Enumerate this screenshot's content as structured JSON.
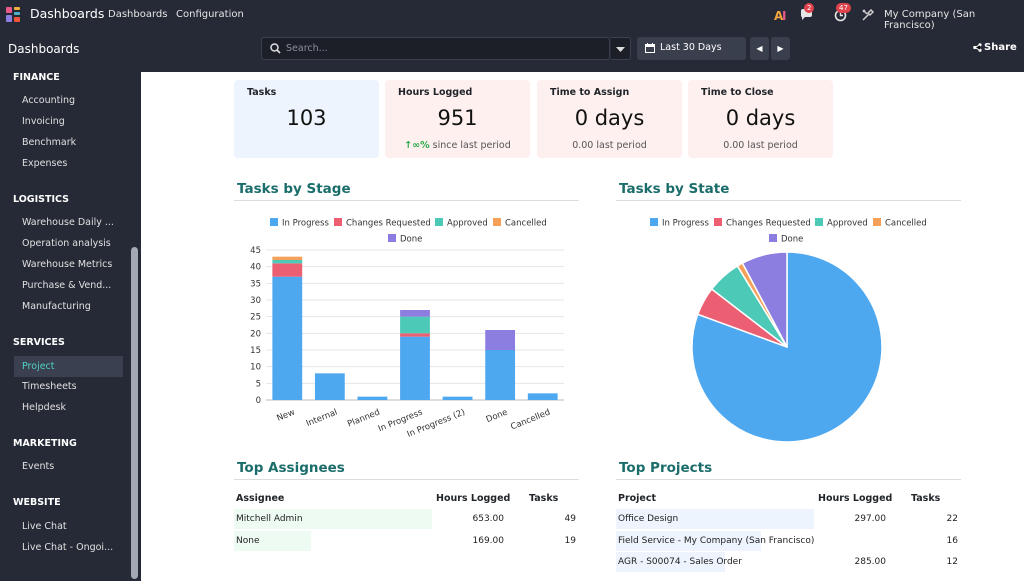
{
  "topbar": {
    "app_title": "Dashboards",
    "menu": [
      "Dashboards",
      "Configuration"
    ],
    "messages_count": "2",
    "activities_count": "47",
    "company": "My Company (San Francisco)"
  },
  "control": {
    "breadcrumb": "Dashboards",
    "search_placeholder": "Search...",
    "date_filter": "Last 30 Days",
    "share_label": "Share"
  },
  "sidebar": {
    "sections": [
      {
        "title": "FINANCE",
        "items": [
          "Accounting",
          "Invoicing",
          "Benchmark",
          "Expenses"
        ]
      },
      {
        "title": "LOGISTICS",
        "items": [
          "Warehouse Daily ...",
          "Operation analysis",
          "Warehouse Metrics",
          "Purchase & Vend...",
          "Manufacturing"
        ]
      },
      {
        "title": "SERVICES",
        "items": [
          "Project",
          "Timesheets",
          "Helpdesk"
        ]
      },
      {
        "title": "MARKETING",
        "items": [
          "Events"
        ]
      },
      {
        "title": "WEBSITE",
        "items": [
          "Live Chat",
          "Live Chat - Ongoi..."
        ]
      }
    ],
    "active_item": "Project"
  },
  "kpis": [
    {
      "label": "Tasks",
      "value": "103",
      "change": "",
      "sub": "",
      "bg": "#edf4fd"
    },
    {
      "label": "Hours Logged",
      "value": "951",
      "change": "∞%",
      "sub": "since last period",
      "bg": "#fdf0ef"
    },
    {
      "label": "Time to Assign",
      "value": "0 days",
      "change": "0.00",
      "sub": "last period",
      "bg": "#fdf0ef"
    },
    {
      "label": "Time to Close",
      "value": "0 days",
      "change": "0.00",
      "sub": "last period",
      "bg": "#fdf0ef"
    }
  ],
  "colors": {
    "in_progress": "#4ea8f0",
    "changes_requested": "#ec5f72",
    "approved": "#4dc9b7",
    "cancelled": "#f5a15a",
    "done": "#8c7ee0",
    "positive": "#28a745"
  },
  "chart_data": [
    {
      "type": "bar",
      "title": "Tasks by Stage",
      "stacked": true,
      "categories": [
        "New",
        "Internal",
        "Planned",
        "In Progress",
        "In Progress (2)",
        "Done",
        "Cancelled"
      ],
      "series": [
        {
          "name": "In Progress",
          "values": [
            37,
            8,
            1,
            19,
            1,
            15,
            2
          ]
        },
        {
          "name": "Changes Requested",
          "values": [
            4,
            0,
            0,
            1,
            0,
            0,
            0
          ]
        },
        {
          "name": "Approved",
          "values": [
            1,
            0,
            0,
            5,
            0,
            0,
            0
          ]
        },
        {
          "name": "Cancelled",
          "values": [
            1,
            0,
            0,
            0,
            0,
            0,
            0
          ]
        },
        {
          "name": "Done",
          "values": [
            0,
            0,
            0,
            2,
            0,
            6,
            0
          ]
        }
      ],
      "ylim": [
        0,
        45
      ],
      "yticks": [
        0,
        5,
        10,
        15,
        20,
        25,
        30,
        35,
        40,
        45
      ],
      "legend": "top",
      "grid": true
    },
    {
      "type": "pie",
      "title": "Tasks by State",
      "labels": [
        "In Progress",
        "Changes Requested",
        "Approved",
        "Cancelled",
        "Done"
      ],
      "values": [
        83,
        5,
        6,
        1,
        8
      ],
      "legend": "top"
    }
  ],
  "assignees": {
    "title": "Top Assignees",
    "headers": [
      "Assignee",
      "Hours Logged",
      "Tasks"
    ],
    "rows": [
      {
        "name": "Mitchell Admin",
        "hours": "653.00",
        "tasks": "49",
        "share": 1.0
      },
      {
        "name": "None",
        "hours": "169.00",
        "tasks": "19",
        "share": 0.39
      }
    ],
    "bar_color": "#edfbf3"
  },
  "projects": {
    "title": "Top Projects",
    "headers": [
      "Project",
      "Hours Logged",
      "Tasks"
    ],
    "rows": [
      {
        "name": "Office Design",
        "hours": "297.00",
        "tasks": "22",
        "share": 1.0
      },
      {
        "name": "Field Service - My Company (San Francisco)",
        "hours": "",
        "tasks": "16",
        "share": 0.73
      },
      {
        "name": "AGR - S00074 - Sales Order",
        "hours": "285.00",
        "tasks": "12",
        "share": 0.55
      }
    ],
    "bar_color": "#edf4fd"
  }
}
